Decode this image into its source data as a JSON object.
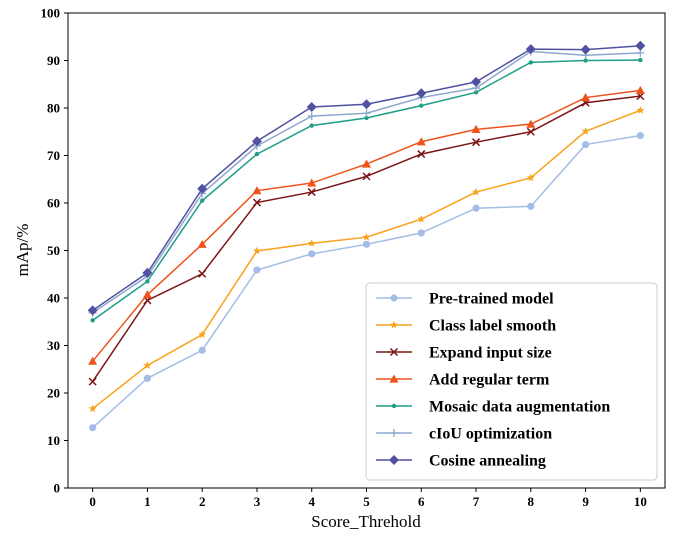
{
  "chart_data": {
    "type": "line",
    "xlabel": "Score_Threhold",
    "ylabel": "mAp/%",
    "x": [
      0,
      1,
      2,
      3,
      4,
      5,
      6,
      7,
      8,
      9,
      10
    ],
    "xlim": [
      -0.45,
      10.45
    ],
    "ylim": [
      0,
      100
    ],
    "yticks": [
      0,
      10,
      20,
      30,
      40,
      50,
      60,
      70,
      80,
      90,
      100
    ],
    "grid": false,
    "legend_position": "bottom-right",
    "series": [
      {
        "name": "Pre-trained model",
        "color": "#a3bde6",
        "marker": "circle",
        "values": [
          12.7,
          23.1,
          29.0,
          45.9,
          49.3,
          51.3,
          53.7,
          58.9,
          59.3,
          72.3,
          74.2
        ]
      },
      {
        "name": "Class label smooth",
        "color": "#f9a21b",
        "marker": "star",
        "values": [
          16.7,
          25.8,
          32.3,
          49.9,
          51.5,
          52.8,
          56.6,
          62.3,
          65.3,
          75.1,
          79.5
        ]
      },
      {
        "name": "Expand input size",
        "color": "#7b1515",
        "marker": "x",
        "values": [
          22.4,
          39.5,
          45.1,
          60.1,
          62.3,
          65.6,
          70.3,
          72.8,
          75.0,
          81.1,
          82.5
        ]
      },
      {
        "name": "Add regular term",
        "color": "#f0521a",
        "marker": "triangle",
        "values": [
          26.7,
          40.7,
          51.3,
          62.6,
          64.2,
          68.2,
          72.9,
          75.5,
          76.6,
          82.2,
          83.7
        ]
      },
      {
        "name": "Mosaic data augmentation",
        "color": "#1e9e86",
        "marker": "dot",
        "values": [
          35.3,
          43.5,
          60.5,
          70.3,
          76.3,
          77.9,
          80.5,
          83.3,
          89.6,
          90.0,
          90.1
        ]
      },
      {
        "name": "cIoU optimization",
        "color": "#8ea7cf",
        "marker": "plus",
        "values": [
          36.9,
          44.6,
          62.0,
          72.0,
          78.3,
          78.9,
          82.2,
          84.2,
          91.9,
          91.1,
          91.6
        ]
      },
      {
        "name": "Cosine annealing",
        "color": "#5151a2",
        "marker": "diamond",
        "values": [
          37.4,
          45.3,
          63.0,
          73.0,
          80.2,
          80.8,
          83.1,
          85.5,
          92.4,
          92.3,
          93.1
        ]
      }
    ]
  }
}
